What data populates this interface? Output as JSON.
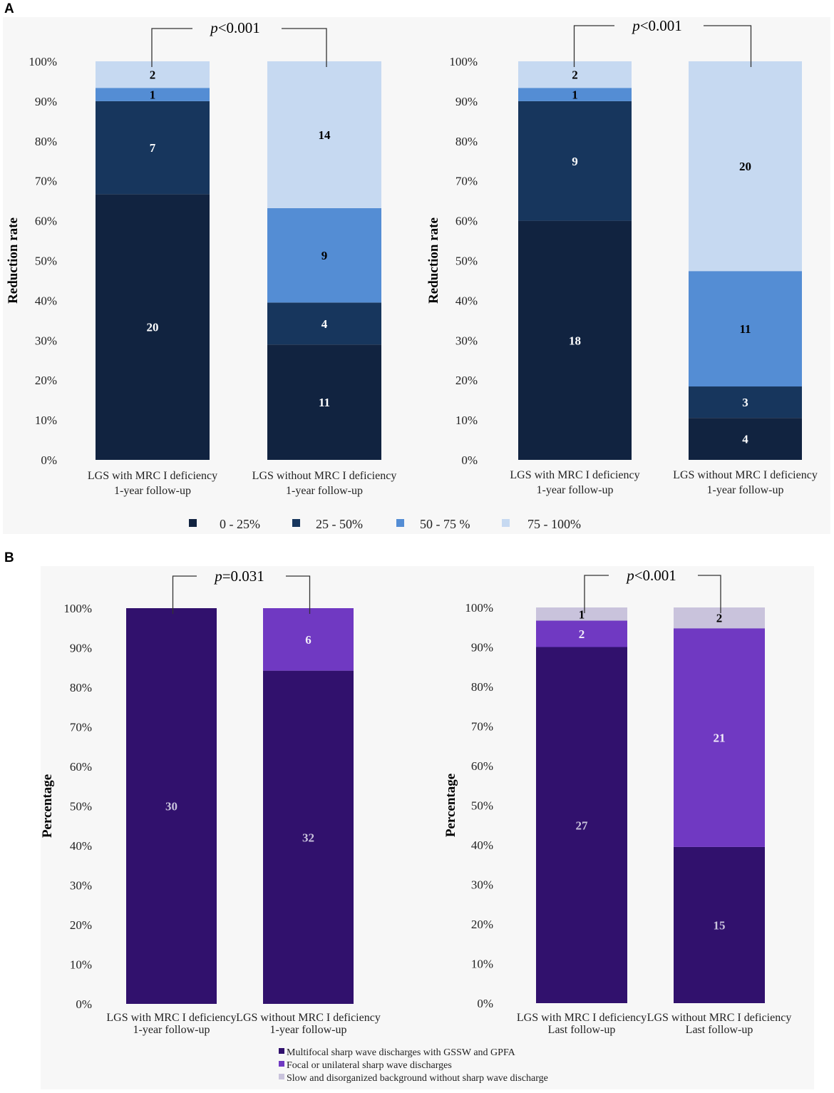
{
  "panels": [
    {
      "label": "A",
      "colors": [
        "#112340",
        "#17365d",
        "#548dd4",
        "#c6d9f1"
      ],
      "legend": [
        "0 - 25%",
        "25 - 50%",
        "50 - 75 %",
        "75 - 100%"
      ],
      "chart_data": [
        {
          "type": "bar",
          "stacked": true,
          "ylabel": "Reduction rate",
          "ylim": [
            0,
            100
          ],
          "yticks": [
            "0%",
            "10%",
            "20%",
            "30%",
            "40%",
            "50%",
            "60%",
            "70%",
            "80%",
            "90%",
            "100%"
          ],
          "categories": [
            [
              "LGS with MRC I deficiency",
              "1-year follow-up"
            ],
            [
              "LGS without MRC I deficiency",
              "1-year follow-up"
            ]
          ],
          "series": [
            {
              "name": "0 - 25%",
              "values": [
                20,
                11
              ]
            },
            {
              "name": "25 - 50%",
              "values": [
                7,
                4
              ]
            },
            {
              "name": "50 - 75 %",
              "values": [
                1,
                9
              ]
            },
            {
              "name": "75 - 100%",
              "values": [
                2,
                14
              ]
            }
          ],
          "p_prefix": "p",
          "p_rest": "<0.001"
        },
        {
          "type": "bar",
          "stacked": true,
          "ylabel": "Reduction rate",
          "ylim": [
            0,
            100
          ],
          "yticks": [
            "0%",
            "10%",
            "20%",
            "30%",
            "40%",
            "50%",
            "60%",
            "70%",
            "80%",
            "90%",
            "100%"
          ],
          "categories": [
            [
              "LGS with MRC I deficiency",
              "1-year follow-up"
            ],
            [
              "LGS without MRC I deficiency",
              "1-year follow-up"
            ]
          ],
          "series": [
            {
              "name": "0 - 25%",
              "values": [
                18,
                4
              ]
            },
            {
              "name": "25 - 50%",
              "values": [
                9,
                3
              ]
            },
            {
              "name": "50 - 75 %",
              "values": [
                1,
                11
              ]
            },
            {
              "name": "75 - 100%",
              "values": [
                2,
                20
              ]
            }
          ],
          "p_prefix": "p",
          "p_rest": "<0.001"
        }
      ]
    },
    {
      "label": "B",
      "colors": [
        "#31116d",
        "#7039c2",
        "#c9c3dc"
      ],
      "legend": [
        "Multifocal sharp wave discharges with GSSW and GPFA",
        "Focal or unilateral sharp wave discharges",
        "Slow and disorganized background without sharp wave discharge"
      ],
      "chart_data": [
        {
          "type": "bar",
          "stacked": true,
          "ylabel": "Percentage",
          "ylim": [
            0,
            100
          ],
          "yticks": [
            "0%",
            "10%",
            "20%",
            "30%",
            "40%",
            "50%",
            "60%",
            "70%",
            "80%",
            "90%",
            "100%"
          ],
          "categories": [
            [
              "LGS with MRC I deficiency",
              "1-year follow-up"
            ],
            [
              "LGS without MRC I deficiency",
              "1-year follow-up"
            ]
          ],
          "series": [
            {
              "name": "Multifocal sharp wave discharges with GSSW and GPFA",
              "values": [
                30,
                32
              ]
            },
            {
              "name": "Focal or unilateral sharp wave discharges",
              "values": [
                0,
                6
              ]
            },
            {
              "name": "Slow and disorganized background without sharp wave discharge",
              "values": [
                0,
                0
              ]
            }
          ],
          "p_prefix": "p",
          "p_rest": "=0.031"
        },
        {
          "type": "bar",
          "stacked": true,
          "ylabel": "Percentage",
          "ylim": [
            0,
            100
          ],
          "yticks": [
            "0%",
            "10%",
            "20%",
            "30%",
            "40%",
            "50%",
            "60%",
            "70%",
            "80%",
            "90%",
            "100%"
          ],
          "categories": [
            [
              "LGS with MRC I deficiency",
              "Last follow-up"
            ],
            [
              "LGS without MRC I deficiency",
              "Last follow-up"
            ]
          ],
          "series": [
            {
              "name": "Multifocal sharp wave discharges with GSSW and GPFA",
              "values": [
                27,
                15
              ]
            },
            {
              "name": "Focal or unilateral sharp wave discharges",
              "values": [
                2,
                21
              ]
            },
            {
              "name": "Slow and disorganized background without sharp wave discharge",
              "values": [
                1,
                2
              ]
            }
          ],
          "p_prefix": "p",
          "p_rest": "<0.001"
        }
      ]
    }
  ]
}
